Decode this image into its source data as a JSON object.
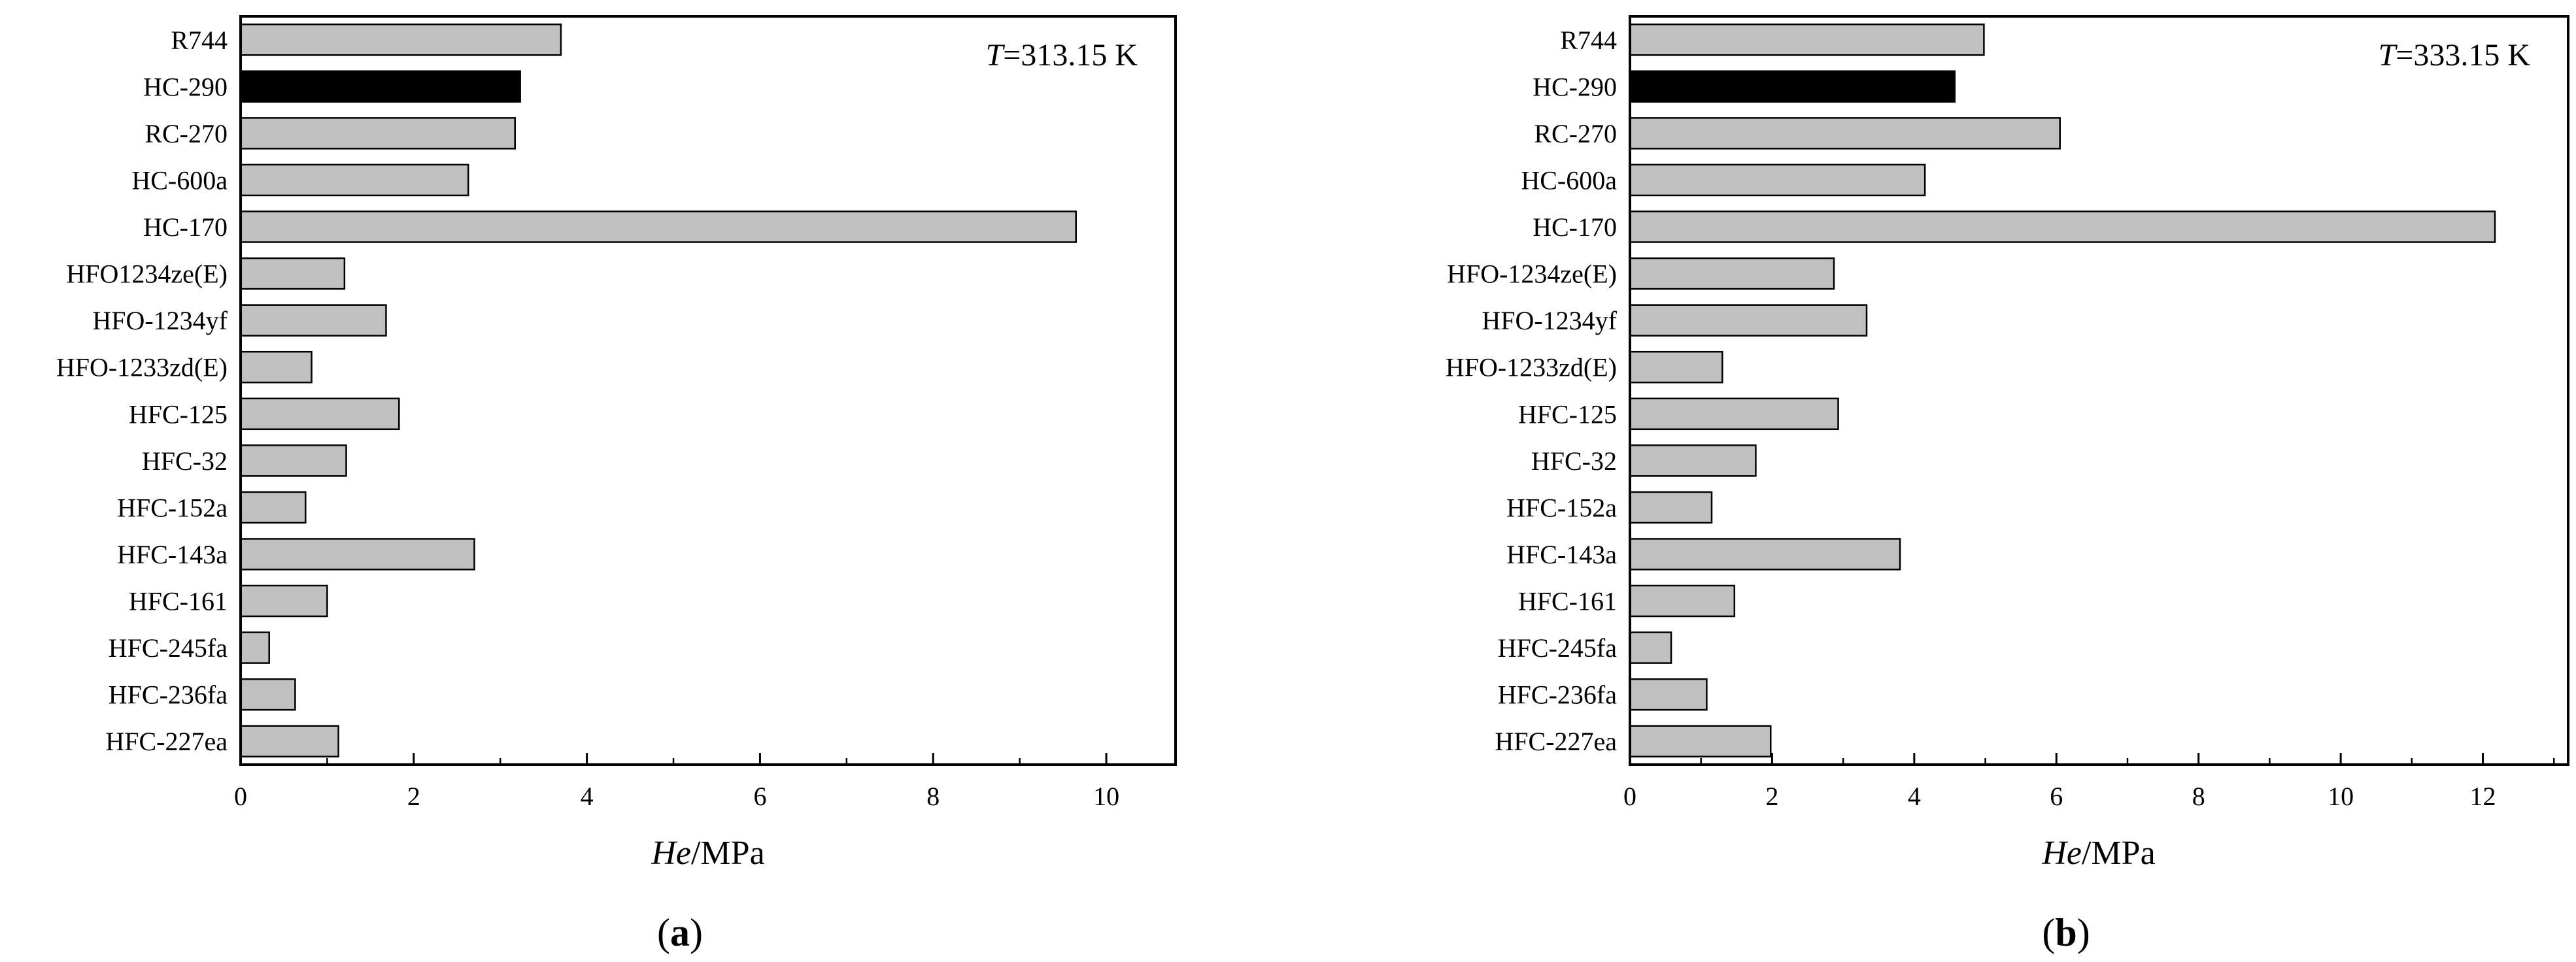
{
  "chart_data": [
    {
      "type": "bar",
      "orientation": "horizontal",
      "panel_label": "a",
      "annotation": {
        "var": "T",
        "text": "=313.15 K"
      },
      "xlabel": {
        "var": "He",
        "unit": "/MPa"
      },
      "xlim": [
        0,
        10.8
      ],
      "xticks": [
        "0",
        "2",
        "4",
        "6",
        "8",
        "10"
      ],
      "categories": [
        "R744",
        "HC-290",
        "RC-270",
        "HC-600a",
        "HC-170",
        "HFO1234ze(E)",
        "HFO-1234yf",
        "HFO-1233zd(E)",
        "HFC-125",
        "HFC-32",
        "HFC-152a",
        "HFC-143a",
        "HFC-161",
        "HFC-245fa",
        "HFC-236fa",
        "HFC-227ea"
      ],
      "values": [
        3.7,
        3.23,
        3.17,
        2.63,
        9.65,
        1.2,
        1.68,
        0.82,
        1.83,
        1.22,
        0.75,
        2.7,
        1.0,
        0.33,
        0.63,
        1.13
      ],
      "highlight": "HC-290",
      "colors": {
        "bar": "#c0c0c0",
        "highlight": "#000000",
        "stroke": "#000000"
      },
      "grid": false
    },
    {
      "type": "bar",
      "orientation": "horizontal",
      "panel_label": "b",
      "annotation": {
        "var": "T",
        "text": "=333.15 K"
      },
      "xlabel": {
        "var": "He",
        "unit": "/MPa"
      },
      "xlim": [
        0,
        13.2
      ],
      "xticks": [
        "0",
        "2",
        "4",
        "6",
        "8",
        "10",
        "12"
      ],
      "categories": [
        "R744",
        "HC-290",
        "RC-270",
        "HC-600a",
        "HC-170",
        "HFO-1234ze(E)",
        "HFO-1234yf",
        "HFO-1233zd(E)",
        "HFC-125",
        "HFC-32",
        "HFC-152a",
        "HFC-143a",
        "HFC-161",
        "HFC-245fa",
        "HFC-236fa",
        "HFC-227ea"
      ],
      "values": [
        4.98,
        4.57,
        6.05,
        4.15,
        12.17,
        2.87,
        3.33,
        1.3,
        2.93,
        1.77,
        1.15,
        3.8,
        1.47,
        0.58,
        1.08,
        1.98
      ],
      "highlight": "HC-290",
      "colors": {
        "bar": "#c0c0c0",
        "highlight": "#000000",
        "stroke": "#000000"
      },
      "grid": false
    }
  ]
}
